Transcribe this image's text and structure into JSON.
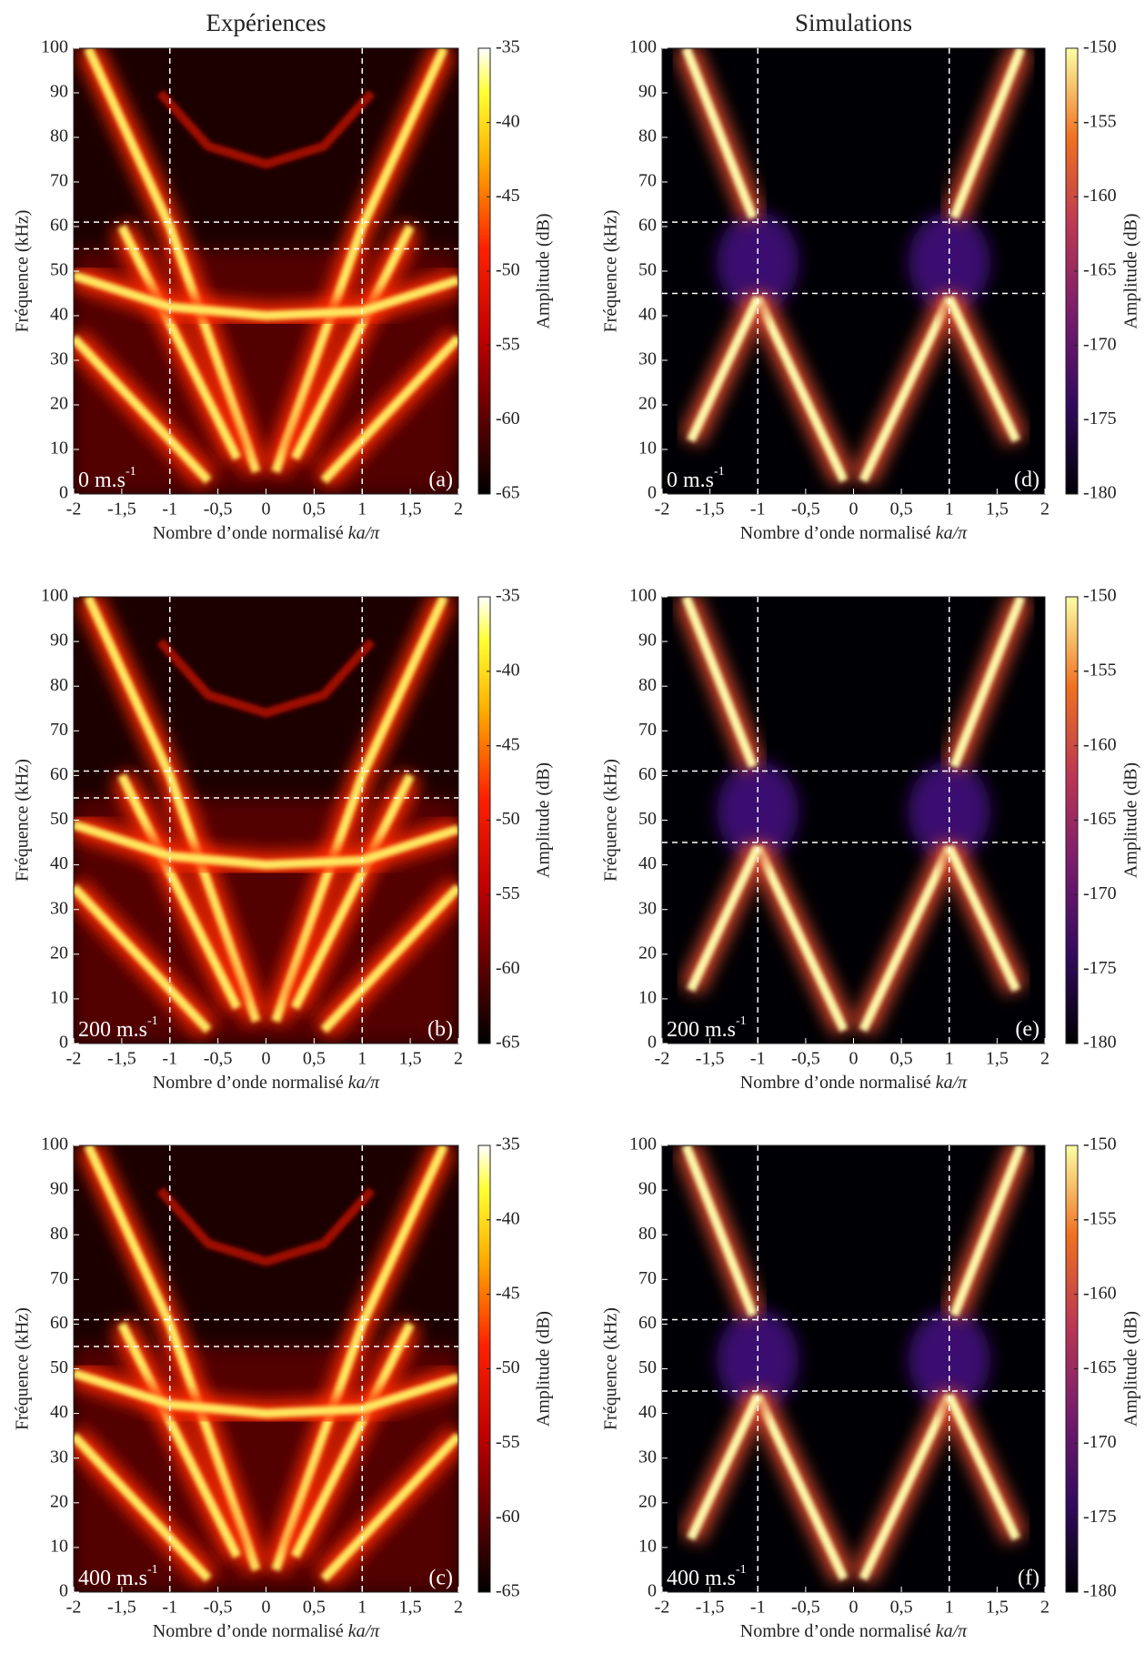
{
  "chart_data": [
    {
      "type": "heatmap",
      "title": "Expériences",
      "colormap": "hot",
      "annotation": "0 m.s",
      "annotation_sup": "-1",
      "panel_label": "(a)",
      "xlabel": "Nombre d’onde normalisé ",
      "xlabel_math": "ka/π",
      "ylabel": "Fréquence (kHz)",
      "colorbar_label": "Amplitude (dB)",
      "xlim": [
        -2,
        2
      ],
      "xticks": [
        -2,
        {
          "value": -1.5,
          "label": "-1,5"
        },
        -1,
        {
          "value": -0.5,
          "label": "-0,5"
        },
        0,
        {
          "value": 0.5,
          "label": "0,5"
        },
        1,
        {
          "value": 1.5,
          "label": "1,5"
        },
        2
      ],
      "ylim": [
        0,
        100
      ],
      "yticks": [
        0,
        10,
        20,
        30,
        40,
        50,
        60,
        70,
        80,
        90,
        100
      ],
      "clim": [
        -65,
        -35
      ],
      "cticks": [
        -65,
        -60,
        -55,
        -50,
        -45,
        -40,
        -35
      ],
      "vlines": [
        -1,
        1
      ],
      "hlines": [
        61,
        55
      ]
    },
    {
      "type": "heatmap",
      "colormap": "hot",
      "annotation": "200 m.s",
      "annotation_sup": "-1",
      "panel_label": "(b)",
      "xlabel": "Nombre d’onde normalisé ",
      "xlabel_math": "ka/π",
      "ylabel": "Fréquence (kHz)",
      "colorbar_label": "Amplitude (dB)",
      "xlim": [
        -2,
        2
      ],
      "xticks": [
        -2,
        {
          "value": -1.5,
          "label": "-1,5"
        },
        -1,
        {
          "value": -0.5,
          "label": "-0,5"
        },
        0,
        {
          "value": 0.5,
          "label": "0,5"
        },
        1,
        {
          "value": 1.5,
          "label": "1,5"
        },
        2
      ],
      "ylim": [
        0,
        100
      ],
      "yticks": [
        0,
        10,
        20,
        30,
        40,
        50,
        60,
        70,
        80,
        90,
        100
      ],
      "clim": [
        -65,
        -35
      ],
      "cticks": [
        -65,
        -60,
        -55,
        -50,
        -45,
        -40,
        -35
      ],
      "vlines": [
        -1,
        1
      ],
      "hlines": [
        61,
        55
      ]
    },
    {
      "type": "heatmap",
      "colormap": "hot",
      "annotation": "400 m.s",
      "annotation_sup": "-1",
      "panel_label": "(c)",
      "xlabel": "Nombre d’onde normalisé ",
      "xlabel_math": "ka/π",
      "ylabel": "Fréquence (kHz)",
      "colorbar_label": "Amplitude (dB)",
      "xlim": [
        -2,
        2
      ],
      "xticks": [
        -2,
        {
          "value": -1.5,
          "label": "-1,5"
        },
        -1,
        {
          "value": -0.5,
          "label": "-0,5"
        },
        0,
        {
          "value": 0.5,
          "label": "0,5"
        },
        1,
        {
          "value": 1.5,
          "label": "1,5"
        },
        2
      ],
      "ylim": [
        0,
        100
      ],
      "yticks": [
        0,
        10,
        20,
        30,
        40,
        50,
        60,
        70,
        80,
        90,
        100
      ],
      "clim": [
        -65,
        -35
      ],
      "cticks": [
        -65,
        -60,
        -55,
        -50,
        -45,
        -40,
        -35
      ],
      "vlines": [
        -1,
        1
      ],
      "hlines": [
        61,
        55
      ]
    },
    {
      "type": "heatmap",
      "title": "Simulations",
      "colormap": "inferno",
      "annotation": "0 m.s",
      "annotation_sup": "-1",
      "panel_label": "(d)",
      "xlabel": "Nombre d’onde normalisé ",
      "xlabel_math": "ka/π",
      "ylabel": "Fréquence (kHz)",
      "colorbar_label": "Amplitude (dB)",
      "xlim": [
        -2,
        2
      ],
      "xticks": [
        -2,
        {
          "value": -1.5,
          "label": "-1,5"
        },
        -1,
        {
          "value": -0.5,
          "label": "-0,5"
        },
        0,
        {
          "value": 0.5,
          "label": "0,5"
        },
        1,
        {
          "value": 1.5,
          "label": "1,5"
        },
        2
      ],
      "ylim": [
        0,
        100
      ],
      "yticks": [
        0,
        10,
        20,
        30,
        40,
        50,
        60,
        70,
        80,
        90,
        100
      ],
      "clim": [
        -180,
        -150
      ],
      "cticks": [
        -180,
        -175,
        -170,
        -165,
        -160,
        -155,
        -150
      ],
      "vlines": [
        -1,
        1
      ],
      "hlines": [
        61,
        45
      ]
    },
    {
      "type": "heatmap",
      "colormap": "inferno",
      "annotation": "200 m.s",
      "annotation_sup": "-1",
      "panel_label": "(e)",
      "xlabel": "Nombre d’onde normalisé ",
      "xlabel_math": "ka/π",
      "ylabel": "Fréquence (kHz)",
      "colorbar_label": "Amplitude (dB)",
      "xlim": [
        -2,
        2
      ],
      "xticks": [
        -2,
        {
          "value": -1.5,
          "label": "-1,5"
        },
        -1,
        {
          "value": -0.5,
          "label": "-0,5"
        },
        0,
        {
          "value": 0.5,
          "label": "0,5"
        },
        1,
        {
          "value": 1.5,
          "label": "1,5"
        },
        2
      ],
      "ylim": [
        0,
        100
      ],
      "yticks": [
        0,
        10,
        20,
        30,
        40,
        50,
        60,
        70,
        80,
        90,
        100
      ],
      "clim": [
        -180,
        -150
      ],
      "cticks": [
        -180,
        -175,
        -170,
        -165,
        -160,
        -155,
        -150
      ],
      "vlines": [
        -1,
        1
      ],
      "hlines": [
        61,
        45
      ]
    },
    {
      "type": "heatmap",
      "colormap": "inferno",
      "annotation": "400 m.s",
      "annotation_sup": "-1",
      "panel_label": "(f)",
      "xlabel": "Nombre d’onde normalisé ",
      "xlabel_math": "ka/π",
      "ylabel": "Fréquence (kHz)",
      "colorbar_label": "Amplitude (dB)",
      "xlim": [
        -2,
        2
      ],
      "xticks": [
        -2,
        {
          "value": -1.5,
          "label": "-1,5"
        },
        -1,
        {
          "value": -0.5,
          "label": "-0,5"
        },
        0,
        {
          "value": 0.5,
          "label": "0,5"
        },
        1,
        {
          "value": 1.5,
          "label": "1,5"
        },
        2
      ],
      "ylim": [
        0,
        100
      ],
      "yticks": [
        0,
        10,
        20,
        30,
        40,
        50,
        60,
        70,
        80,
        90,
        100
      ],
      "clim": [
        -180,
        -150
      ],
      "cticks": [
        -180,
        -175,
        -170,
        -165,
        -160,
        -155,
        -150
      ],
      "vlines": [
        -1,
        1
      ],
      "hlines": [
        61,
        45
      ]
    }
  ]
}
